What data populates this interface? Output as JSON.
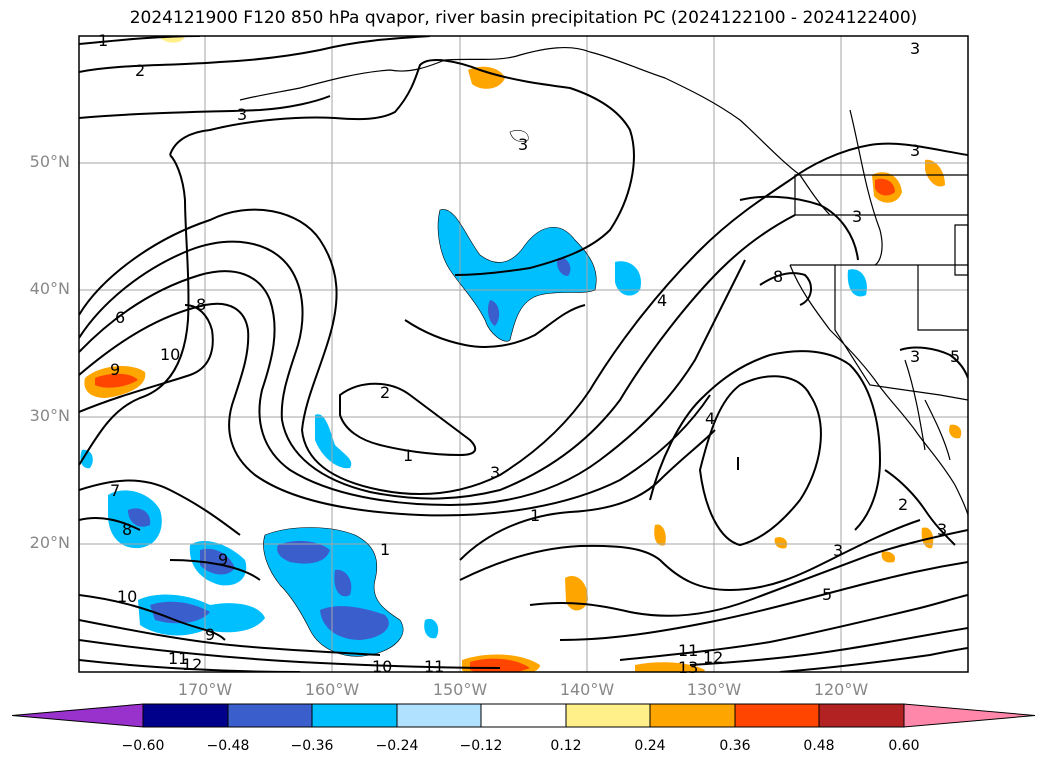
{
  "title": "2024121900 F120 850 hPa qvapor, river basin precipitation PC (2024122100 - 2024122400)",
  "lat_labels": [
    "50°N",
    "40°N",
    "30°N",
    "20°N"
  ],
  "lon_labels": [
    "170°W",
    "160°W",
    "150°W",
    "140°W",
    "130°W",
    "120°W"
  ],
  "contour_labels": [
    "1",
    "2",
    "3",
    "3",
    "3",
    "6",
    "8",
    "9",
    "10",
    "2",
    "1",
    "3",
    "1",
    "7",
    "8",
    "9",
    "10",
    "9",
    "11",
    "12",
    "10",
    "11",
    "4",
    "8",
    "3",
    "3",
    "5",
    "4",
    "2",
    "3",
    "3",
    "5",
    "11",
    "12",
    "13",
    "3",
    "1"
  ],
  "colorbar": {
    "ticks": [
      "−0.60",
      "−0.48",
      "−0.36",
      "−0.24",
      "−0.12",
      "0.12",
      "0.24",
      "0.36",
      "0.48",
      "0.60"
    ],
    "colors": {
      "under": "#9932cc",
      "c1": "#00008b",
      "c2": "#3a5fcd",
      "c3": "#00bfff",
      "c4": "#b0e2ff",
      "c5": "#ffffff",
      "c6": "#fff08a",
      "c7": "#ffa500",
      "c8": "#ff4500",
      "c9": "#b22222",
      "over": "#ff88aa"
    }
  }
}
